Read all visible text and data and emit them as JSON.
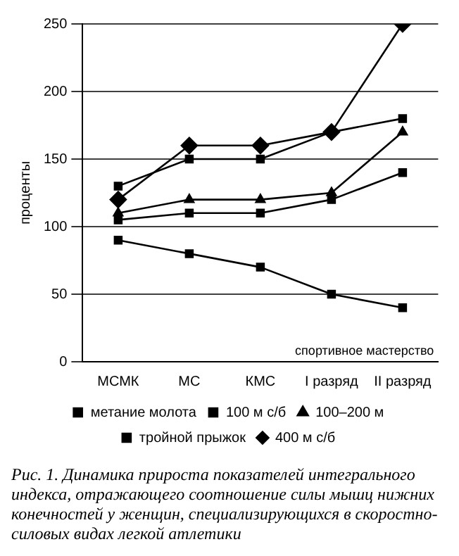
{
  "chart_data": {
    "type": "line",
    "xlabel": "спортивное мастерство",
    "ylabel": "проценты",
    "categories": [
      "МСМК",
      "МС",
      "КМС",
      "I разряд",
      "II разряд"
    ],
    "series": [
      {
        "name": "400 м с/б",
        "color": "#000000",
        "marker": "diamond",
        "values": [
          120,
          160,
          160,
          170,
          250
        ]
      },
      {
        "name": "тройной прыжок",
        "color": "#000000",
        "marker": "square",
        "values": [
          130,
          150,
          150,
          170,
          180
        ]
      },
      {
        "name": "100–200 м",
        "color": "#000000",
        "marker": "triangle",
        "values": [
          110,
          120,
          120,
          125,
          170
        ]
      },
      {
        "name": "100 м с/б",
        "color": "#000000",
        "marker": "square",
        "values": [
          90,
          80,
          70,
          50,
          40
        ]
      },
      {
        "name": "метание молота",
        "color": "#000000",
        "marker": "square",
        "values": [
          105,
          110,
          110,
          120,
          140
        ]
      }
    ],
    "ylim": [
      0,
      250
    ],
    "yticks": [
      0,
      50,
      100,
      150,
      200,
      250
    ],
    "grid": "y",
    "legend": "bottom",
    "line_style": "solid",
    "annotations": [
      "Рис. 1. Динамика прироста показателей интегрального индекса, отражающего соотношение силы мышц нижних конечностей у женщин, специализирующихся в скоростно-силовых видах легкой атлетики"
    ]
  }
}
